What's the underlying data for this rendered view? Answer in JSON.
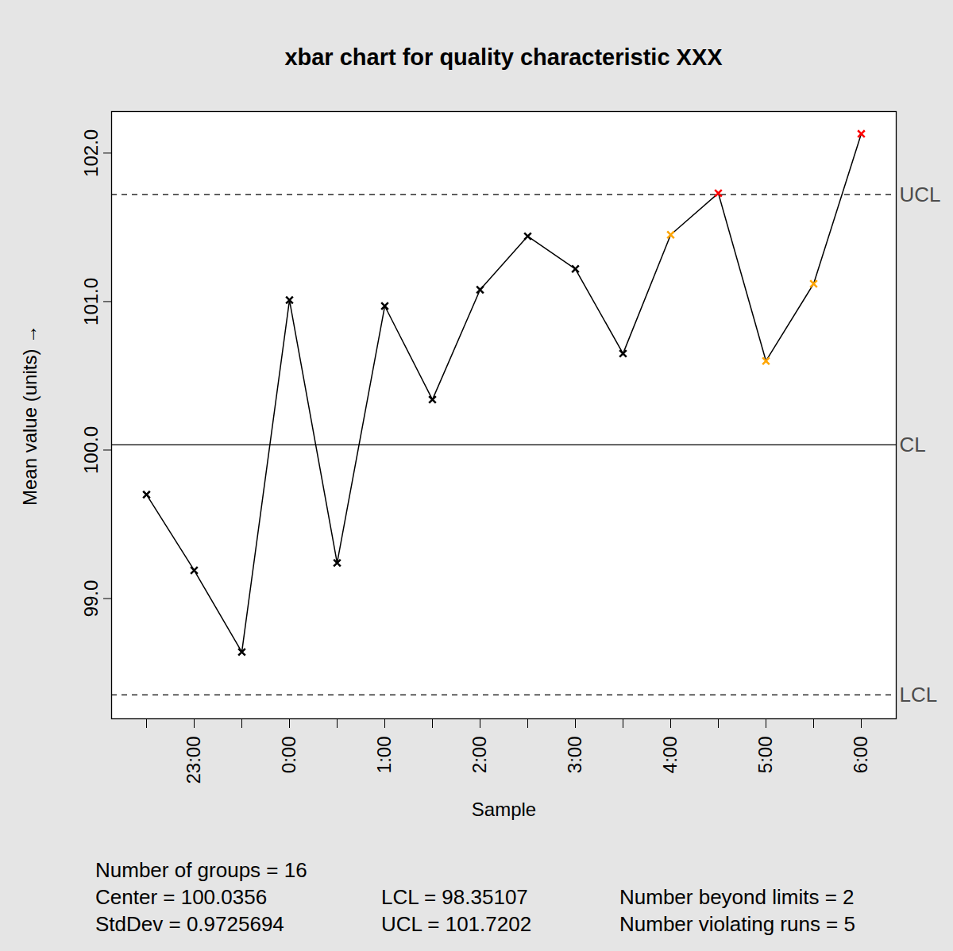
{
  "chart_data": {
    "type": "line",
    "title": "xbar chart for quality characteristic XXX",
    "x_label": "Sample",
    "y_label": "Mean value (units)",
    "categories": [
      null,
      "23:00",
      null,
      "0:00",
      null,
      "1:00",
      null,
      "2:00",
      null,
      "3:00",
      null,
      "4:00",
      null,
      "5:00",
      null,
      "6:00"
    ],
    "values": [
      99.7,
      99.19,
      98.64,
      101.01,
      99.24,
      100.97,
      100.34,
      101.08,
      101.44,
      101.22,
      100.65,
      101.45,
      101.73,
      100.6,
      101.12,
      102.13
    ],
    "colors": [
      "#000000",
      "#000000",
      "#000000",
      "#000000",
      "#000000",
      "#000000",
      "#000000",
      "#000000",
      "#000000",
      "#000000",
      "#000000",
      "#ffa500",
      "#ff0000",
      "#ffa500",
      "#ffa500",
      "#ff0000"
    ],
    "color": "#000000",
    "marker": "x",
    "ylim": [
      98.19,
      102.28
    ],
    "yticks": [
      99,
      100,
      101,
      102
    ],
    "limits": [
      {
        "label": "UCL",
        "value": 101.7202,
        "line_style": "dashed"
      },
      {
        "label": "CL",
        "value": 100.0356,
        "line_style": "solid"
      },
      {
        "label": "LCL",
        "value": 98.35107,
        "line_style": "dashed"
      }
    ],
    "summary": [
      [
        "Number of groups = 16"
      ],
      [
        "Center = 100.0356",
        "LCL = 98.35107",
        "Number beyond limits = 2"
      ],
      [
        "StdDev = 0.9725694",
        "UCL = 101.7202",
        "Number violating runs = 5"
      ]
    ]
  }
}
